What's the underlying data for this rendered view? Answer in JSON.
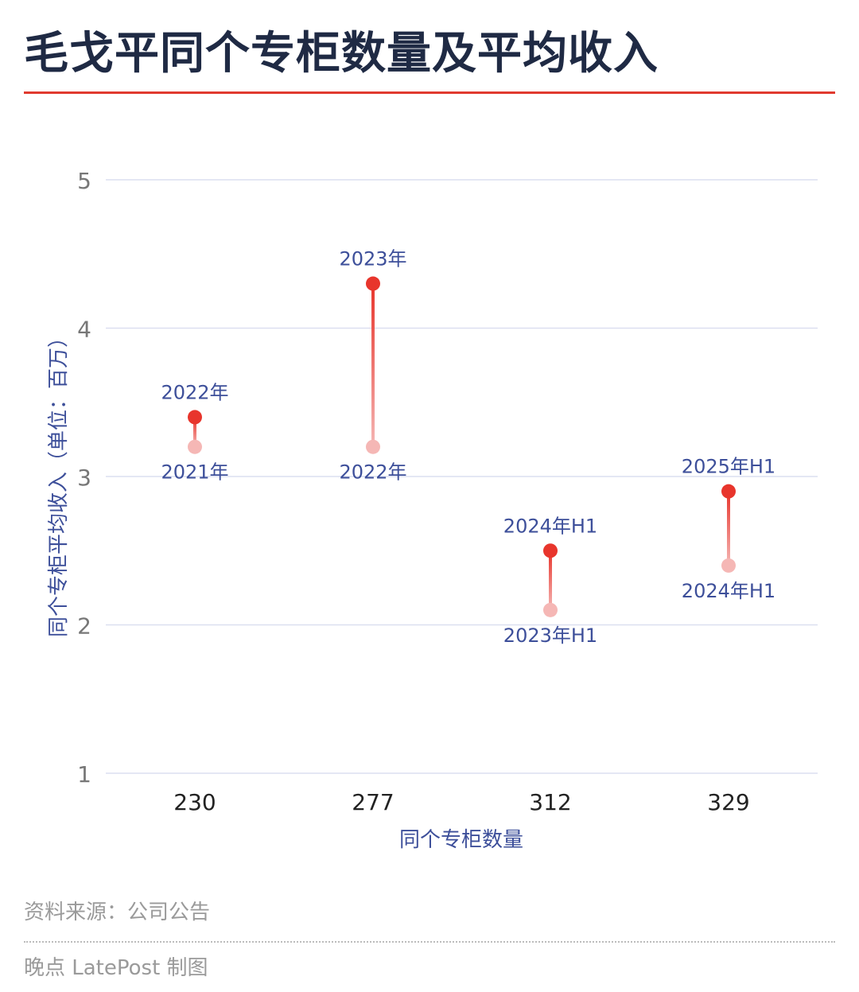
{
  "title": "毛戈平同个专柜数量及平均收入",
  "source": "资料来源：公司公告",
  "credit": "晚点 LatePost 制图",
  "colors": {
    "accent": "#e03a2f",
    "title": "#1f2a44",
    "axis_label": "#3d4f9a",
    "point_current": "#e8352c",
    "point_previous": "#f5b7b5",
    "grid": "#dcdff0"
  },
  "chart_data": {
    "type": "dumbbell",
    "xlabel": "同个专柜数量",
    "ylabel": "同个专柜平均收入（单位：百万）",
    "ylim": [
      1,
      5
    ],
    "yticks": [
      1,
      2,
      3,
      4,
      5
    ],
    "categories": [
      "230",
      "277",
      "312",
      "329"
    ],
    "pairs": [
      {
        "category": "230",
        "from_label": "2021年",
        "from_value": 3.2,
        "to_label": "2022年",
        "to_value": 3.4
      },
      {
        "category": "277",
        "from_label": "2022年",
        "from_value": 3.2,
        "to_label": "2023年",
        "to_value": 4.3
      },
      {
        "category": "312",
        "from_label": "2023年H1",
        "from_value": 2.1,
        "to_label": "2024年H1",
        "to_value": 2.5
      },
      {
        "category": "329",
        "from_label": "2024年H1",
        "from_value": 2.4,
        "to_label": "2025年H1",
        "to_value": 2.9
      }
    ],
    "grid": true
  }
}
